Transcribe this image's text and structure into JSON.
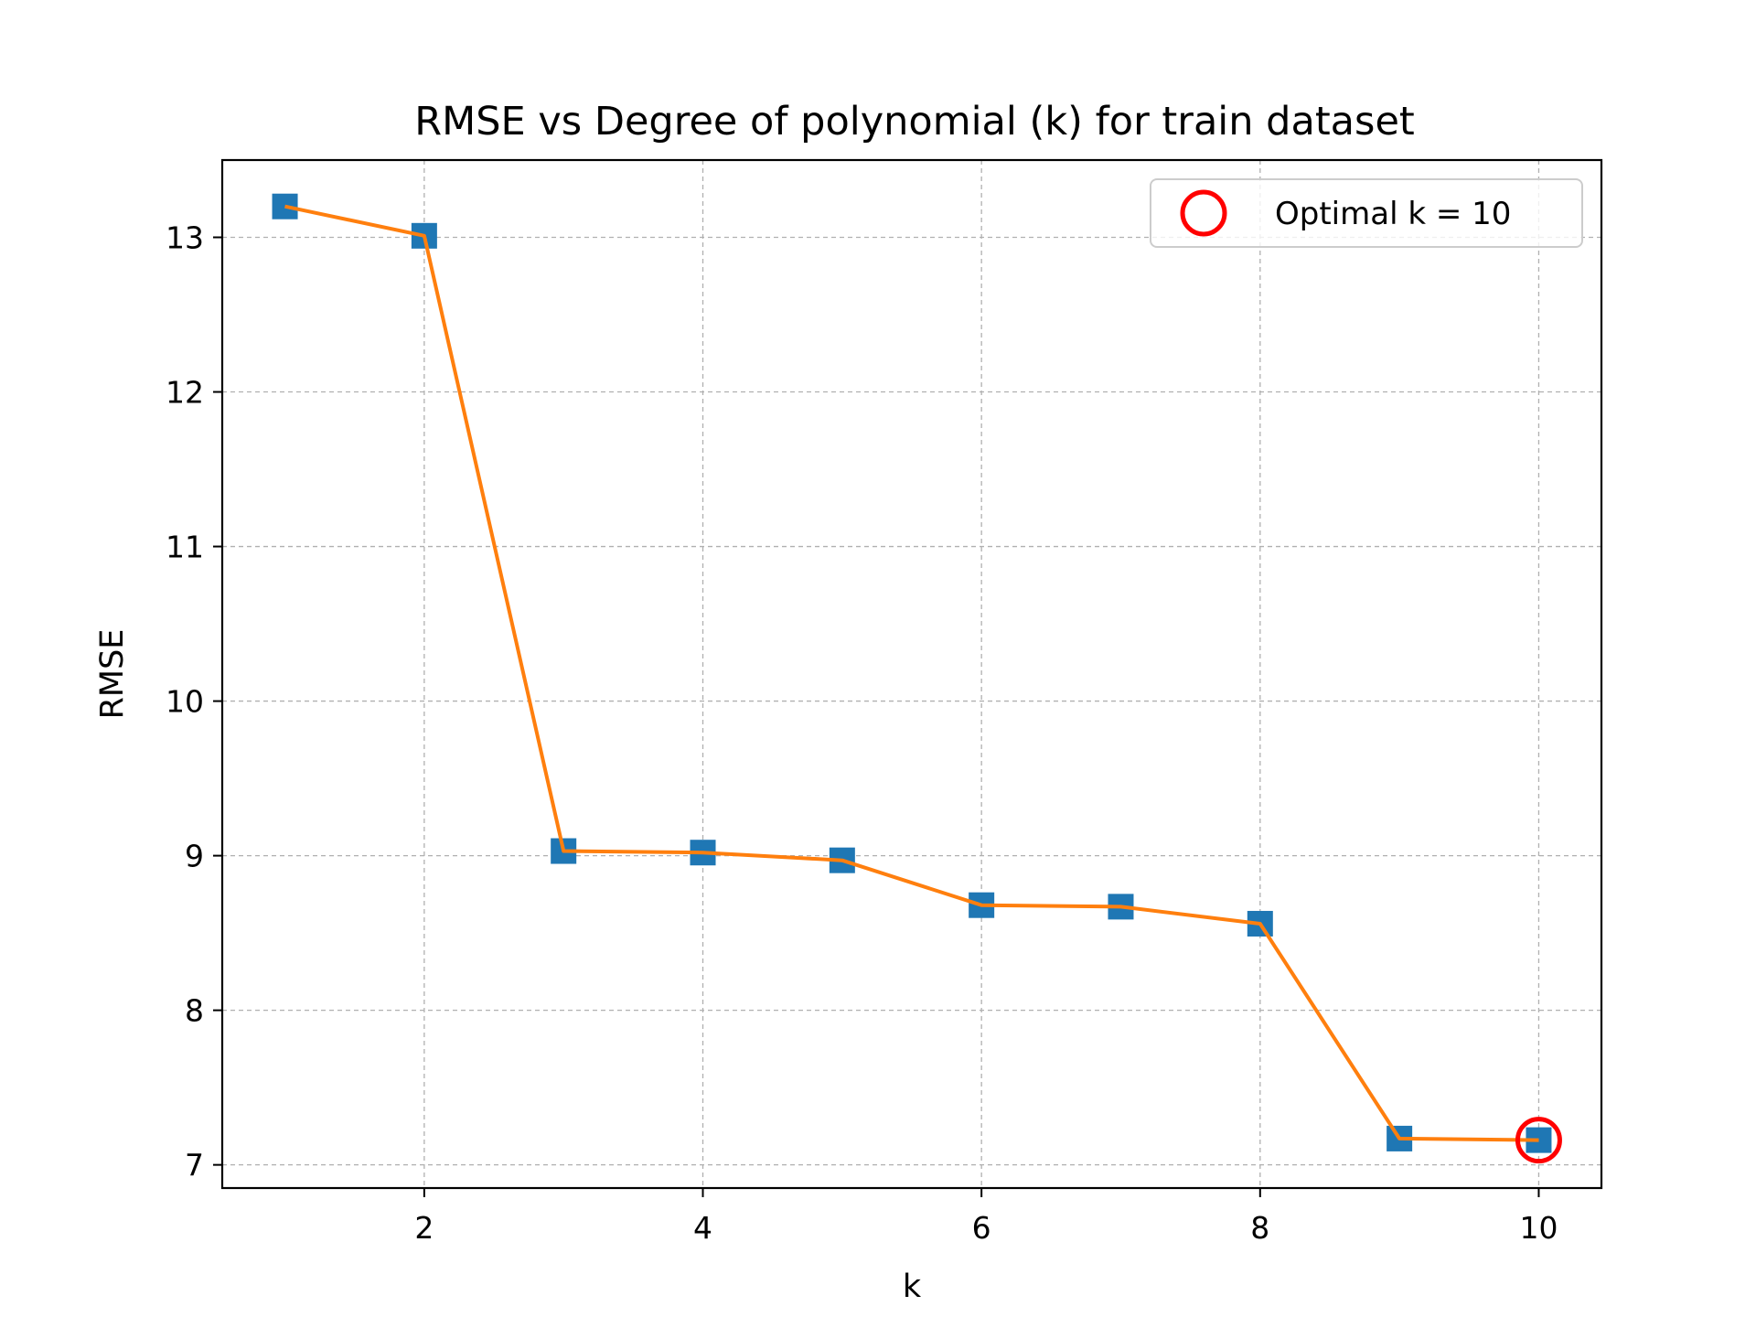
{
  "chart_data": {
    "type": "line",
    "title": "RMSE vs Degree of polynomial (k) for train dataset",
    "xlabel": "k",
    "ylabel": "RMSE",
    "x": [
      1,
      2,
      3,
      4,
      5,
      6,
      7,
      8,
      9,
      10
    ],
    "series": [
      {
        "values": [
          13.2,
          13.01,
          9.03,
          9.02,
          8.97,
          8.68,
          8.67,
          8.56,
          7.17,
          7.16
        ],
        "marker": "square",
        "marker_color": "#1f77b4",
        "line_color": "#ff7f0e"
      }
    ],
    "highlight": {
      "x": 10,
      "y": 7.16,
      "label": "Optimal k = 10",
      "color": "#ff0000",
      "marker": "open-circle"
    },
    "xlim": [
      0.55,
      10.45
    ],
    "ylim": [
      6.85,
      13.5
    ],
    "xticks": [
      2,
      4,
      6,
      8,
      10
    ],
    "xtick_labels": [
      "2",
      "4",
      "6",
      "8",
      "10"
    ],
    "yticks": [
      7,
      8,
      9,
      10,
      11,
      12,
      13
    ],
    "ytick_labels": [
      "7",
      "8",
      "9",
      "10",
      "11",
      "12",
      "13"
    ],
    "grid": true,
    "legend_position": "top-right"
  }
}
